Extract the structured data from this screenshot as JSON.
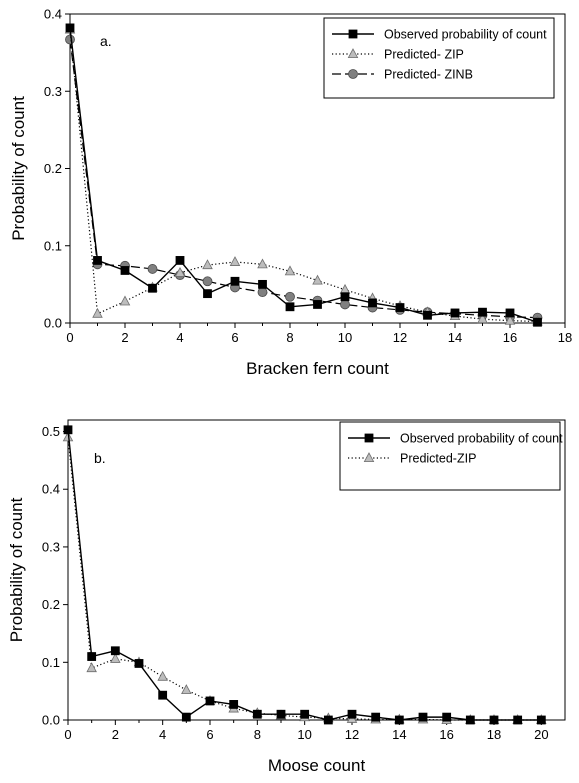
{
  "chart_data": [
    {
      "type": "line",
      "panel_label": "a.",
      "xlabel": "Bracken fern count",
      "ylabel": "Probability of count",
      "xlim": [
        0,
        18
      ],
      "ylim": [
        0,
        0.4
      ],
      "xticks": [
        0,
        2,
        4,
        6,
        8,
        10,
        12,
        14,
        16,
        18
      ],
      "yticks": [
        0.0,
        0.1,
        0.2,
        0.3,
        0.4
      ],
      "ytick_labels": [
        "0.0",
        "0.1",
        "0.2",
        "0.3",
        "0.4"
      ],
      "grid": false,
      "legend_position": "top-right",
      "series": [
        {
          "name": "Observed probability of count",
          "style": "solid",
          "marker": "square",
          "color": "#000000",
          "marker_fill": "#000000",
          "x": [
            0,
            1,
            2,
            3,
            4,
            5,
            6,
            7,
            8,
            9,
            10,
            11,
            12,
            13,
            14,
            15,
            16,
            17
          ],
          "y": [
            0.382,
            0.081,
            0.068,
            0.045,
            0.081,
            0.038,
            0.054,
            0.05,
            0.021,
            0.024,
            0.034,
            0.026,
            0.02,
            0.01,
            0.013,
            0.014,
            0.013,
            0.001
          ]
        },
        {
          "name": "Predicted- ZIP",
          "style": "dotted",
          "marker": "triangle",
          "color": "#000000",
          "marker_fill": "#bdbdbd",
          "x": [
            0,
            1,
            2,
            3,
            4,
            5,
            6,
            7,
            8,
            9,
            10,
            11,
            12,
            13,
            14,
            15,
            16,
            17
          ],
          "y": [
            0.38,
            0.012,
            0.028,
            0.046,
            0.065,
            0.075,
            0.079,
            0.076,
            0.067,
            0.055,
            0.043,
            0.032,
            0.022,
            0.014,
            0.009,
            0.005,
            0.003,
            0.002
          ]
        },
        {
          "name": "Predicted- ZINB",
          "style": "dashed",
          "marker": "circle",
          "color": "#000000",
          "marker_fill": "#808080",
          "x": [
            0,
            1,
            2,
            3,
            4,
            5,
            6,
            7,
            8,
            9,
            10,
            11,
            12,
            13,
            14,
            15,
            16,
            17
          ],
          "y": [
            0.367,
            0.076,
            0.074,
            0.07,
            0.062,
            0.054,
            0.046,
            0.04,
            0.034,
            0.029,
            0.024,
            0.02,
            0.017,
            0.014,
            0.012,
            0.01,
            0.008,
            0.007
          ]
        }
      ]
    },
    {
      "type": "line",
      "panel_label": "b.",
      "xlabel": "Moose count",
      "ylabel": "Probability of count",
      "xlim": [
        0,
        21
      ],
      "ylim": [
        0,
        0.52
      ],
      "xticks": [
        0,
        2,
        4,
        6,
        8,
        10,
        12,
        14,
        16,
        18,
        20
      ],
      "yticks": [
        0.0,
        0.1,
        0.2,
        0.3,
        0.4,
        0.5
      ],
      "ytick_labels": [
        "0.0",
        "0.1",
        "0.2",
        "0.3",
        "0.4",
        "0.5"
      ],
      "grid": false,
      "legend_position": "top-right",
      "series": [
        {
          "name": "Observed probability of count",
          "style": "solid",
          "marker": "square",
          "color": "#000000",
          "marker_fill": "#000000",
          "x": [
            0,
            1,
            2,
            3,
            4,
            5,
            6,
            7,
            8,
            9,
            10,
            11,
            12,
            13,
            14,
            15,
            16,
            17,
            18,
            19,
            20
          ],
          "y": [
            0.503,
            0.11,
            0.12,
            0.098,
            0.043,
            0.005,
            0.033,
            0.027,
            0.01,
            0.01,
            0.01,
            0.0,
            0.01,
            0.005,
            0.0,
            0.005,
            0.005,
            0.0,
            0.0,
            0.0,
            0.0
          ]
        },
        {
          "name": "Predicted-ZIP",
          "style": "dotted",
          "marker": "triangle",
          "color": "#000000",
          "marker_fill": "#bdbdbd",
          "x": [
            0,
            1,
            2,
            3,
            4,
            5,
            6,
            7,
            8,
            9,
            10,
            11,
            12,
            13,
            14,
            15,
            16,
            17,
            18,
            19,
            20
          ],
          "y": [
            0.49,
            0.09,
            0.106,
            0.1,
            0.075,
            0.052,
            0.033,
            0.02,
            0.012,
            0.008,
            0.005,
            0.003,
            0.002,
            0.001,
            0.001,
            0.001,
            0.0,
            0.0,
            0.0,
            0.0,
            0.0
          ]
        }
      ]
    }
  ]
}
